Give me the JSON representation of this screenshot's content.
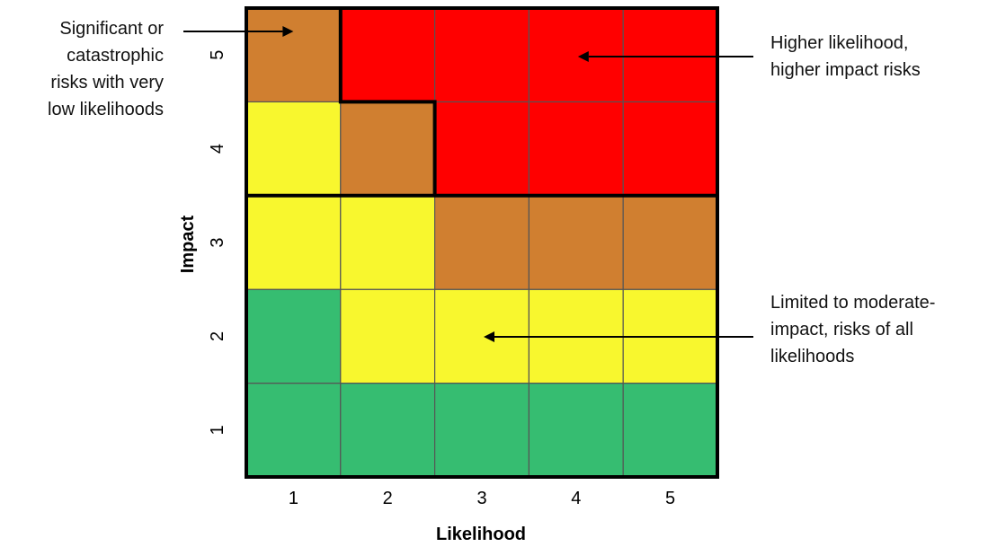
{
  "chart_data": {
    "type": "heatmap",
    "title": "",
    "xlabel": "Likelihood",
    "ylabel": "Impact",
    "x_categories": [
      "1",
      "2",
      "3",
      "4",
      "5"
    ],
    "y_categories": [
      "1",
      "2",
      "3",
      "4",
      "5"
    ],
    "level_colors": {
      "low": "#36bd71",
      "moderate": "#f8f72e",
      "high": "#d07f30",
      "very_high": "#ff0000"
    },
    "cells": [
      [
        "low",
        "low",
        "low",
        "low",
        "low"
      ],
      [
        "low",
        "moderate",
        "moderate",
        "moderate",
        "moderate"
      ],
      [
        "moderate",
        "moderate",
        "high",
        "high",
        "high"
      ],
      [
        "moderate",
        "high",
        "very_high",
        "very_high",
        "very_high"
      ],
      [
        "high",
        "very_high",
        "very_high",
        "very_high",
        "very_high"
      ]
    ],
    "grid": true,
    "annotations": [
      {
        "id": "significant-low-likelihood",
        "lines": [
          "Significant or",
          "catastrophic",
          "risks with very",
          "low likelihoods"
        ],
        "points_to": {
          "likelihood": "1",
          "impact": "5"
        }
      },
      {
        "id": "higher-likelihood-higher-impact",
        "lines": [
          "Higher likelihood,",
          "higher impact risks"
        ],
        "points_to": {
          "likelihood": "4",
          "impact": "5"
        }
      },
      {
        "id": "limited-moderate-impact",
        "lines": [
          "Limited to moderate-",
          "impact, risks of all",
          "likelihoods"
        ],
        "points_to": {
          "likelihood": "3",
          "impact": "2"
        }
      }
    ]
  }
}
